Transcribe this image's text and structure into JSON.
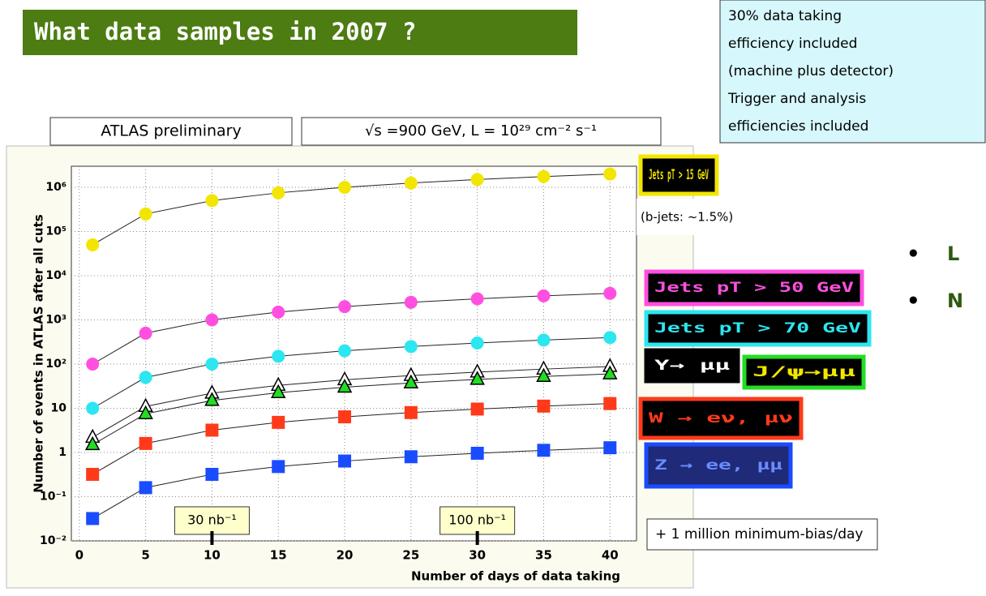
{
  "slide": {
    "title": "What data samples in 2007  ?",
    "info": [
      "30% data taking",
      "efficiency included",
      "(machine plus detector)",
      "Trigger and analysis",
      "efficiencies included"
    ],
    "bullets": [
      "L",
      "N"
    ],
    "note": "+ 1 million minimum-bias/day"
  },
  "chart_data": {
    "type": "line",
    "log_y": true,
    "grid": true,
    "labels": {
      "experiment": "ATLAS preliminary",
      "conditions": "√s =900 GeV,  L = 10²⁹ cm⁻² s⁻¹",
      "bjets": "(b-jets: ~1.5%)"
    },
    "y_label": "Number of events in ATLAS after all cuts",
    "x_label": "Number of days of data taking",
    "x": [
      1,
      5,
      10,
      15,
      20,
      25,
      30,
      35,
      40
    ],
    "xlim": [
      -0.6,
      42
    ],
    "xticks": [
      0,
      5,
      10,
      15,
      20,
      25,
      30,
      35,
      40
    ],
    "ylim": [
      0.01,
      3000000
    ],
    "yticks": [
      {
        "value": 0.01,
        "label": "10⁻²"
      },
      {
        "value": 0.1,
        "label": "10⁻¹"
      },
      1,
      10,
      {
        "value": 100,
        "label": "10²"
      },
      {
        "value": 1000,
        "label": "10³"
      },
      {
        "value": 10000,
        "label": "10⁴"
      },
      {
        "value": 100000,
        "label": "10⁵"
      },
      {
        "value": 1000000,
        "label": "10⁶"
      }
    ],
    "annotations": [
      {
        "text": "30 nb⁻¹",
        "x": 10
      },
      {
        "text": "100 nb⁻¹",
        "x": 30
      }
    ],
    "series": [
      {
        "name": "Jets pT > 15 GeV",
        "color": "#f2e600",
        "marker": "circle",
        "values": [
          50000,
          250000,
          500000,
          750000,
          1000000,
          1250000,
          1500000,
          1750000,
          2000000
        ]
      },
      {
        "name": "Jets pT > 50 GeV",
        "color": "#ff4fe0",
        "marker": "circle",
        "values": [
          100,
          500,
          1000,
          1500,
          2000,
          2500,
          3000,
          3500,
          4000
        ]
      },
      {
        "name": "Jets pT > 70 GeV",
        "color": "#2ce6f0",
        "marker": "circle",
        "values": [
          10,
          50,
          100,
          150,
          200,
          250,
          300,
          350,
          400
        ]
      },
      {
        "name": "Υ→ μμ",
        "color": "#ffffff",
        "marker": "triangle",
        "values": [
          2.2,
          11,
          22,
          33,
          44,
          55,
          66,
          77,
          88
        ]
      },
      {
        "name": "J/ψ→μμ",
        "color": "#22dd22",
        "marker": "triangle",
        "values": [
          1.5,
          7.5,
          15,
          22.5,
          30,
          37.5,
          45,
          52.5,
          60
        ]
      },
      {
        "name": "W → eν, μν",
        "color": "#ff3a1a",
        "marker": "square",
        "values": [
          0.32,
          1.6,
          3.2,
          4.8,
          6.4,
          8,
          9.6,
          11.2,
          12.8
        ]
      },
      {
        "name": "Z → ee, μμ",
        "color": "#1a4cff",
        "marker": "square",
        "values": [
          0.032,
          0.16,
          0.32,
          0.48,
          0.64,
          0.8,
          0.96,
          1.12,
          1.28
        ]
      }
    ]
  }
}
